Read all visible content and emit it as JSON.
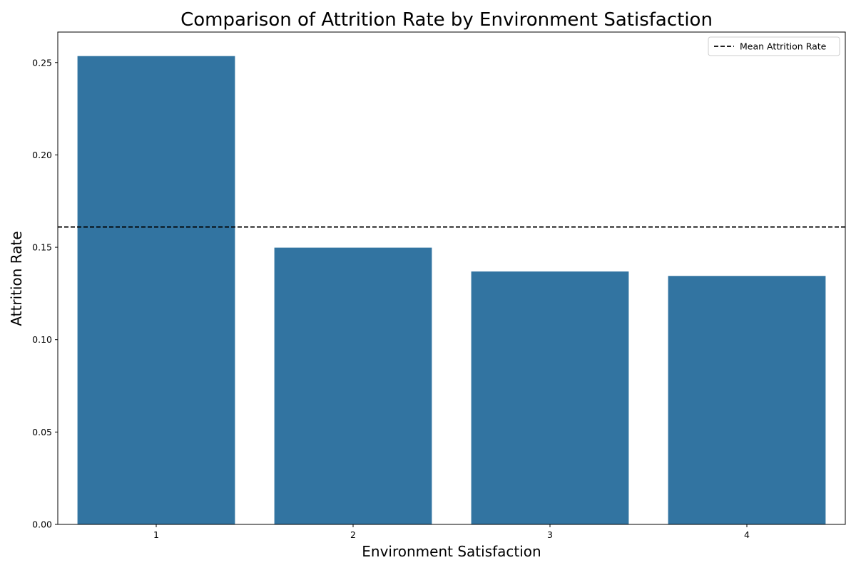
{
  "chart_data": {
    "type": "bar",
    "title": "Comparison of Attrition Rate by Environment Satisfaction",
    "xlabel": "Environment Satisfaction",
    "ylabel": "Attrition Rate",
    "categories": [
      "1",
      "2",
      "3",
      "4"
    ],
    "values": [
      0.2535,
      0.1498,
      0.1369,
      0.1345
    ],
    "ylim": [
      0,
      0.2665
    ],
    "yticks": [
      0.0,
      0.05,
      0.1,
      0.15,
      0.2,
      0.25
    ],
    "ytick_labels": [
      "0.00",
      "0.05",
      "0.10",
      "0.15",
      "0.20",
      "0.25"
    ],
    "bar_color": "#3274a1",
    "mean_line": {
      "value": 0.161,
      "label": "Mean Attrition Rate",
      "color": "#000000",
      "style": "dashed"
    },
    "legend_position": "top-right",
    "grid": false
  }
}
